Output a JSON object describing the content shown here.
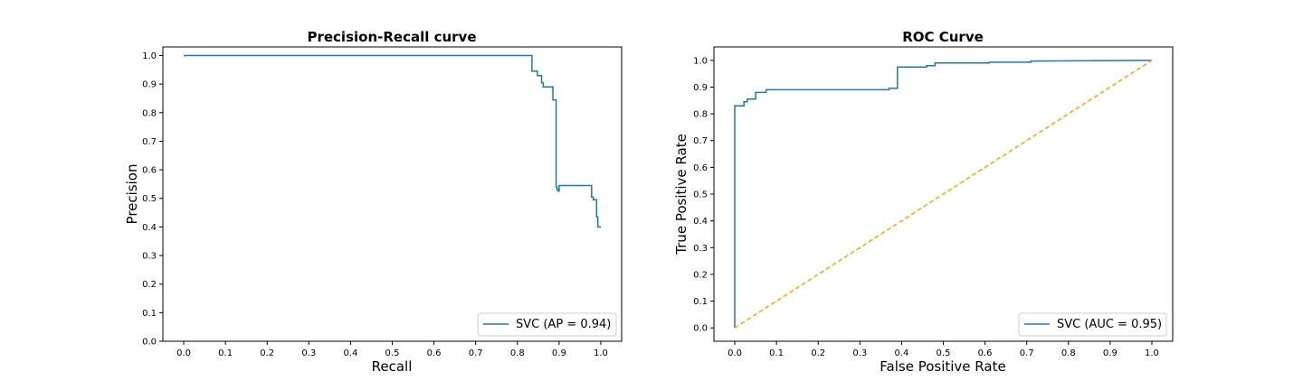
{
  "chart_data": [
    {
      "type": "line",
      "title": "Precision-Recall curve",
      "xlabel": "Recall",
      "ylabel": "Precision",
      "xlim": [
        -0.05,
        1.05
      ],
      "ylim": [
        0.0,
        1.03
      ],
      "xticks": [
        0.0,
        0.1,
        0.2,
        0.3,
        0.4,
        0.5,
        0.6,
        0.7,
        0.8,
        0.9,
        1.0
      ],
      "xtick_labels": [
        "0.0",
        "0.1",
        "0.2",
        "0.3",
        "0.4",
        "0.5",
        "0.6",
        "0.7",
        "0.8",
        "0.9",
        "1.0"
      ],
      "yticks": [
        0.0,
        0.1,
        0.2,
        0.3,
        0.4,
        0.5,
        0.6,
        0.7,
        0.8,
        0.9,
        1.0
      ],
      "ytick_labels": [
        "0.0",
        "0.1",
        "0.2",
        "0.3",
        "0.4",
        "0.5",
        "0.6",
        "0.7",
        "0.8",
        "0.9",
        "1.0"
      ],
      "legend_position": "lower-right",
      "series": [
        {
          "name": "SVC (AP = 0.94)",
          "color": "#1f77b4",
          "style": "steps",
          "x": [
            0.0,
            0.835,
            0.835,
            0.848,
            0.848,
            0.858,
            0.858,
            0.862,
            0.862,
            0.885,
            0.885,
            0.893,
            0.893,
            0.895,
            0.895,
            0.898,
            0.898,
            0.9,
            0.9,
            0.978,
            0.978,
            0.982,
            0.982,
            0.985,
            0.985,
            0.99,
            0.99,
            0.993,
            0.993,
            1.0
          ],
          "y": [
            1.0,
            1.0,
            0.945,
            0.945,
            0.93,
            0.93,
            0.905,
            0.905,
            0.89,
            0.89,
            0.845,
            0.845,
            0.54,
            0.54,
            0.53,
            0.53,
            0.525,
            0.525,
            0.545,
            0.545,
            0.505,
            0.505,
            0.495,
            0.495,
            0.495,
            0.495,
            0.435,
            0.435,
            0.4,
            0.4
          ]
        }
      ]
    },
    {
      "type": "line",
      "title": "ROC Curve",
      "xlabel": "False Positive Rate",
      "ylabel": "True Positive Rate",
      "xlim": [
        -0.05,
        1.05
      ],
      "ylim": [
        -0.05,
        1.05
      ],
      "xticks": [
        0.0,
        0.1,
        0.2,
        0.3,
        0.4,
        0.5,
        0.6,
        0.7,
        0.8,
        0.9,
        1.0
      ],
      "xtick_labels": [
        "0.0",
        "0.1",
        "0.2",
        "0.3",
        "0.4",
        "0.5",
        "0.6",
        "0.7",
        "0.8",
        "0.9",
        "1.0"
      ],
      "yticks": [
        0.0,
        0.1,
        0.2,
        0.3,
        0.4,
        0.5,
        0.6,
        0.7,
        0.8,
        0.9,
        1.0
      ],
      "ytick_labels": [
        "0.0",
        "0.1",
        "0.2",
        "0.3",
        "0.4",
        "0.5",
        "0.6",
        "0.7",
        "0.8",
        "0.9",
        "1.0"
      ],
      "legend_position": "lower-right",
      "series": [
        {
          "name": "SVC (AUC = 0.95)",
          "color": "#1f77b4",
          "style": "steps",
          "x": [
            0.0,
            0.0,
            0.0,
            0.022,
            0.022,
            0.03,
            0.03,
            0.05,
            0.05,
            0.075,
            0.075,
            0.37,
            0.37,
            0.39,
            0.39,
            0.46,
            0.46,
            0.48,
            0.48,
            0.61,
            0.61,
            0.71,
            0.71,
            1.0
          ],
          "y": [
            0.0,
            0.83,
            0.83,
            0.83,
            0.845,
            0.845,
            0.855,
            0.855,
            0.88,
            0.88,
            0.89,
            0.89,
            0.895,
            0.895,
            0.975,
            0.975,
            0.98,
            0.98,
            0.99,
            0.99,
            0.993,
            0.993,
            0.997,
            1.0
          ]
        },
        {
          "name": "chance",
          "color": "#ffa500",
          "style": "dashed",
          "show_in_legend": false,
          "x": [
            0.0,
            1.0
          ],
          "y": [
            0.0,
            1.0
          ]
        }
      ]
    }
  ]
}
